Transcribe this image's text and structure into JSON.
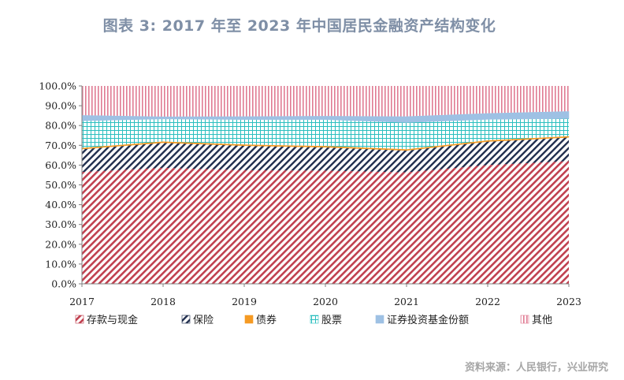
{
  "title": "图表 3:   2017 年至 2023 年中国居民金融资产结构变化",
  "source": "资料来源：人民银行，兴业研究",
  "chart_data": {
    "type": "area",
    "stacked": true,
    "x": [
      "2017",
      "2018",
      "2019",
      "2020",
      "2021",
      "2022",
      "2023"
    ],
    "ylim": [
      0,
      100
    ],
    "yticks": [
      "0.0%",
      "10.0%",
      "20.0%",
      "30.0%",
      "40.0%",
      "50.0%",
      "60.0%",
      "70.0%",
      "80.0%",
      "90.0%",
      "100.0%"
    ],
    "series": [
      {
        "name": "存款与现金",
        "values": [
          56.5,
          58.6,
          57.4,
          57.2,
          56.3,
          60.0,
          62.0
        ],
        "color": "#c0404f",
        "pattern": "diag-red"
      },
      {
        "name": "保险",
        "values": [
          11.6,
          12.7,
          12.4,
          11.8,
          11.1,
          11.9,
          12.0
        ],
        "color": "#1f2d4d",
        "pattern": "diag-navy"
      },
      {
        "name": "债券",
        "values": [
          0.6,
          0.6,
          0.6,
          0.6,
          0.6,
          0.6,
          0.6
        ],
        "color": "#f59a23",
        "pattern": "solid-orange"
      },
      {
        "name": "股票",
        "values": [
          13.7,
          11.4,
          12.6,
          13.4,
          13.5,
          10.6,
          8.9
        ],
        "color": "#2bbfbf",
        "pattern": "grid-teal"
      },
      {
        "name": "证券投资基金份额",
        "values": [
          2.8,
          1.2,
          1.6,
          1.8,
          3.1,
          3.1,
          3.7
        ],
        "color": "#9ec1e4",
        "pattern": "solid-blue"
      },
      {
        "name": "其他",
        "values": [
          14.8,
          15.5,
          15.4,
          15.2,
          15.4,
          13.8,
          12.8
        ],
        "color": "#e07b93",
        "pattern": "vert-pink"
      }
    ],
    "legend_position": "bottom",
    "grid": false
  }
}
